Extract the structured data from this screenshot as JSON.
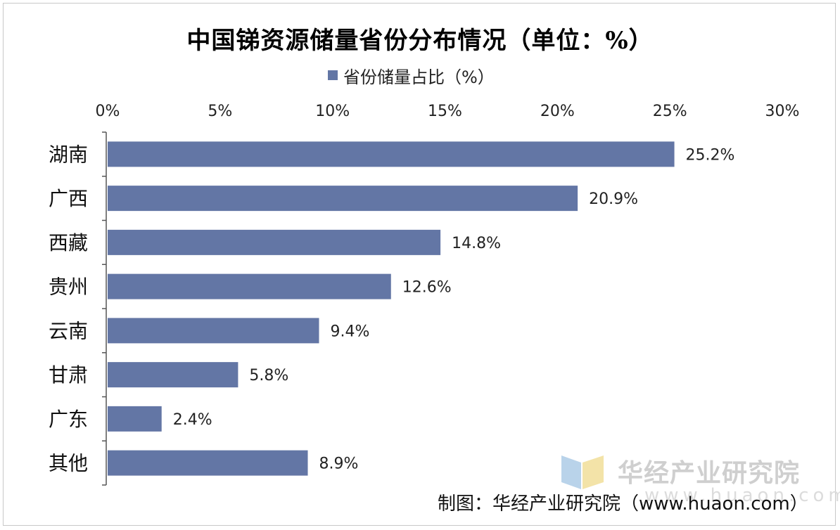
{
  "chart_data": {
    "type": "bar",
    "orientation": "horizontal",
    "title": "中国锑资源储量省份分布情况（单位：%）",
    "legend": {
      "label": "省份储量占比（%）",
      "position": "top"
    },
    "categories": [
      "湖南",
      "广西",
      "西藏",
      "贵州",
      "云南",
      "甘肃",
      "广东",
      "其他"
    ],
    "series": [
      {
        "name": "省份储量占比（%）",
        "values": [
          25.2,
          20.9,
          14.8,
          12.6,
          9.4,
          5.8,
          2.4,
          8.9
        ],
        "labels": [
          "25.2%",
          "20.9%",
          "14.8%",
          "12.6%",
          "9.4%",
          "5.8%",
          "2.4%",
          "8.9%"
        ],
        "color": "#6376a5"
      }
    ],
    "xaxis": {
      "position": "top",
      "range": [
        0,
        30
      ],
      "ticks": [
        0,
        5,
        10,
        15,
        20,
        25,
        30
      ],
      "tick_labels": [
        "0%",
        "5%",
        "10%",
        "15%",
        "20%",
        "25%",
        "30%"
      ]
    },
    "grid": false
  },
  "watermark": {
    "brand": "华经产业研究院",
    "url": "www.huaon.com"
  },
  "source": "制图：华经产业研究院（www.huaon.com）"
}
